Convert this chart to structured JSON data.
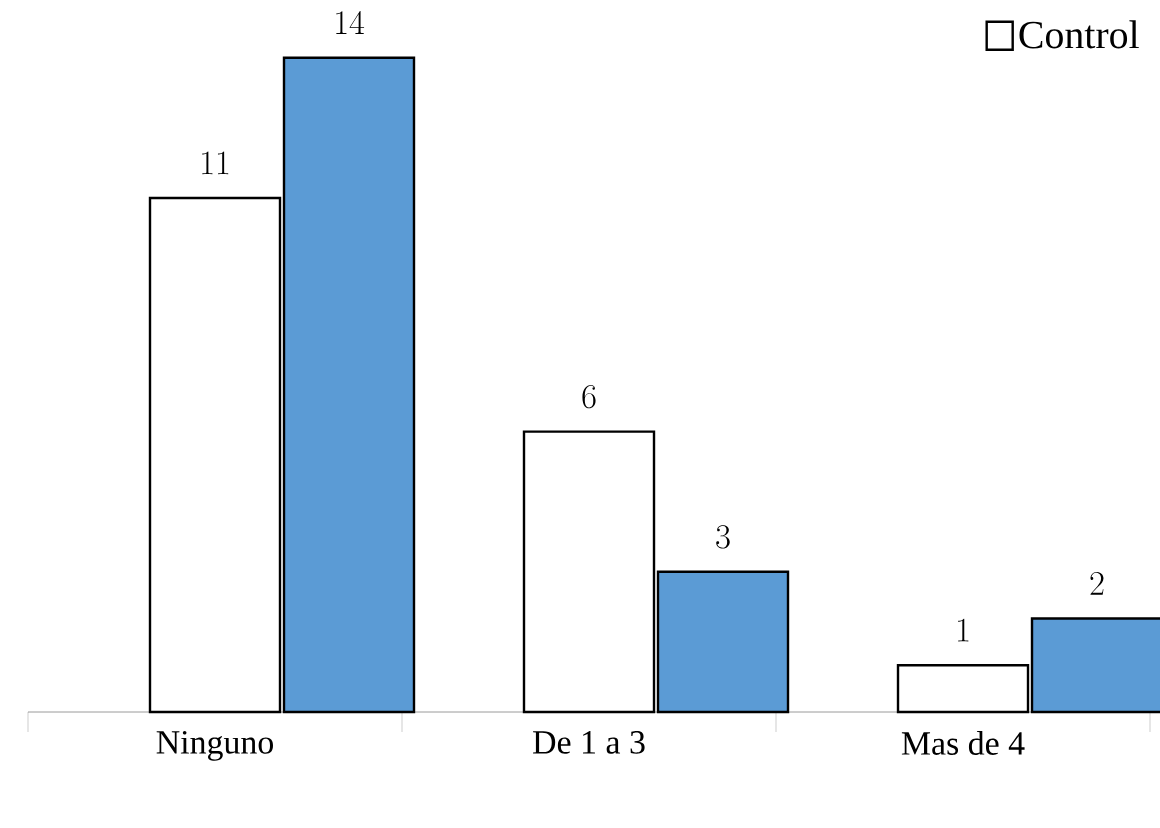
{
  "chart_data": {
    "type": "bar",
    "categories": [
      "Ninguno",
      "De 1 a 3",
      "Mas de 4"
    ],
    "series": [
      {
        "name": "Control",
        "color": "#ffffff",
        "values": [
          11,
          6,
          1
        ]
      },
      {
        "color": "#5b9bd5",
        "values": [
          14,
          3,
          2
        ]
      }
    ],
    "data_labels": true,
    "legend": "top right"
  }
}
